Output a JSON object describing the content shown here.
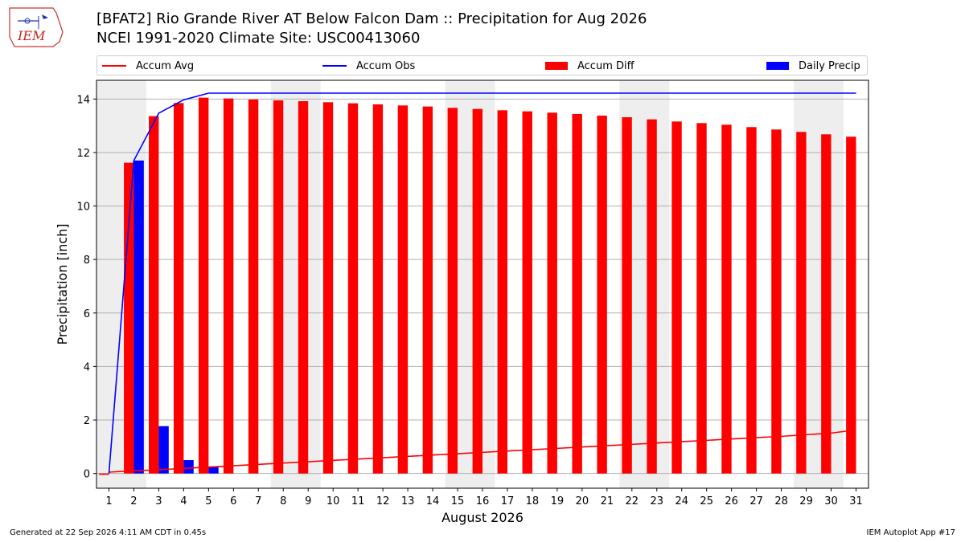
{
  "header": {
    "title_line1": "[BFAT2] Rio Grande River  AT Below Falcon Dam :: Precipitation for Aug 2026",
    "title_line2": "NCEI 1991-2020 Climate Site: USC00413060",
    "logo_text": "IEM"
  },
  "footer": {
    "left": "Generated at 22 Sep 2026 4:11 AM CDT in 0.45s",
    "right": "IEM Autoplot App #17"
  },
  "colors": {
    "accum_avg": "#ff0000",
    "accum_obs": "#0000ff",
    "accum_diff": "#ff0000",
    "daily_precip": "#0000ff",
    "weekend_shade": "#eeeeee",
    "grid": "#b0b0b0"
  },
  "chart_data": {
    "type": "bar",
    "xlabel": "August 2026",
    "ylabel": "Precipitation [inch]",
    "x": [
      1,
      2,
      3,
      4,
      5,
      6,
      7,
      8,
      9,
      10,
      11,
      12,
      13,
      14,
      15,
      16,
      17,
      18,
      19,
      20,
      21,
      22,
      23,
      24,
      25,
      26,
      27,
      28,
      29,
      30,
      31
    ],
    "xlim": [
      0.5,
      31.5
    ],
    "ylim": [
      -0.55,
      14.7
    ],
    "yticks": [
      0,
      2,
      4,
      6,
      8,
      10,
      12,
      14
    ],
    "grid": true,
    "legend_position": "top",
    "shaded_days": [
      [
        1,
        2
      ],
      [
        8,
        9
      ],
      [
        15,
        16
      ],
      [
        22,
        23
      ],
      [
        29,
        30
      ]
    ],
    "series": [
      {
        "name": "Accum Avg",
        "kind": "line",
        "values": [
          0.05,
          0.1,
          0.14,
          0.19,
          0.24,
          0.29,
          0.34,
          0.39,
          0.44,
          0.49,
          0.54,
          0.59,
          0.64,
          0.69,
          0.74,
          0.79,
          0.84,
          0.89,
          0.94,
          0.99,
          1.04,
          1.09,
          1.14,
          1.19,
          1.24,
          1.29,
          1.34,
          1.39,
          1.45,
          1.51,
          1.63
        ]
      },
      {
        "name": "Accum Obs",
        "kind": "line",
        "values": [
          0.0,
          11.7,
          13.47,
          13.97,
          14.22,
          14.22,
          14.22,
          14.22,
          14.22,
          14.22,
          14.22,
          14.22,
          14.22,
          14.22,
          14.22,
          14.22,
          14.22,
          14.22,
          14.22,
          14.22,
          14.22,
          14.22,
          14.22,
          14.22,
          14.22,
          14.22,
          14.22,
          14.22,
          14.22,
          14.22,
          14.22
        ]
      },
      {
        "name": "Accum Diff",
        "kind": "bar",
        "values": [
          -0.05,
          11.62,
          13.36,
          13.85,
          14.05,
          14.02,
          13.98,
          13.95,
          13.92,
          13.88,
          13.84,
          13.8,
          13.76,
          13.72,
          13.67,
          13.63,
          13.58,
          13.54,
          13.49,
          13.44,
          13.38,
          13.32,
          13.24,
          13.16,
          13.1,
          13.04,
          12.95,
          12.86,
          12.77,
          12.68,
          12.59
        ]
      },
      {
        "name": "Daily Precip",
        "kind": "bar",
        "values": [
          0,
          11.7,
          1.77,
          0.5,
          0.25,
          0,
          0,
          0,
          0,
          0,
          0,
          0,
          0,
          0,
          0,
          0,
          0,
          0,
          0,
          0,
          0,
          0,
          0,
          0,
          0,
          0,
          0,
          0,
          0,
          0,
          0
        ]
      }
    ]
  }
}
